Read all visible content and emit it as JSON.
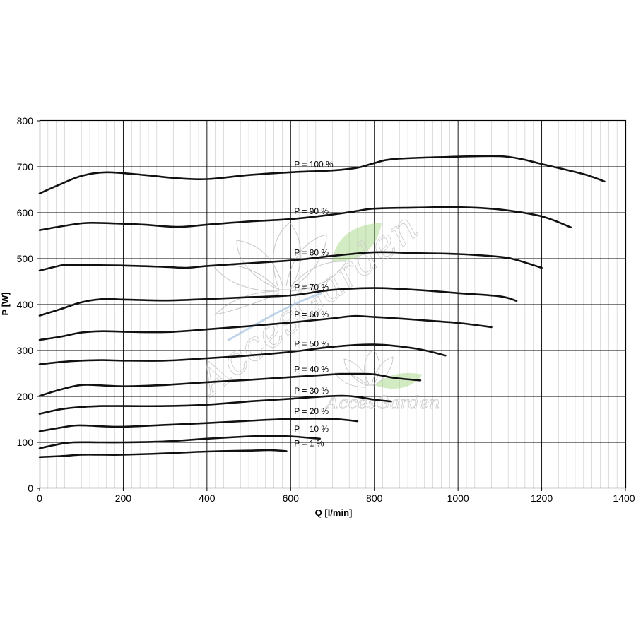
{
  "chart_data": {
    "type": "line",
    "xlabel": "Q [l/min]",
    "ylabel": "P [W]",
    "xlim": [
      0,
      1400
    ],
    "ylim": [
      0,
      800
    ],
    "x_ticks": [
      "0",
      "200",
      "400",
      "600",
      "800",
      "1000",
      "1200",
      "1400"
    ],
    "y_ticks": [
      "0",
      "100",
      "200",
      "300",
      "400",
      "500",
      "600",
      "700",
      "800"
    ],
    "grid": true,
    "line_color": "#111111",
    "series": [
      {
        "name": "P = 100 %",
        "points": [
          [
            0,
            642
          ],
          [
            50,
            662
          ],
          [
            100,
            680
          ],
          [
            160,
            688
          ],
          [
            250,
            682
          ],
          [
            330,
            675
          ],
          [
            400,
            673
          ],
          [
            500,
            682
          ],
          [
            600,
            688
          ],
          [
            700,
            692
          ],
          [
            760,
            698
          ],
          [
            800,
            708
          ],
          [
            850,
            717
          ],
          [
            1000,
            722
          ],
          [
            1100,
            723
          ],
          [
            1150,
            717
          ],
          [
            1200,
            706
          ],
          [
            1300,
            684
          ],
          [
            1350,
            668
          ]
        ]
      },
      {
        "name": "P = 90 %",
        "points": [
          [
            0,
            562
          ],
          [
            50,
            570
          ],
          [
            100,
            577
          ],
          [
            130,
            578
          ],
          [
            200,
            576
          ],
          [
            250,
            574
          ],
          [
            330,
            569
          ],
          [
            400,
            574
          ],
          [
            500,
            581
          ],
          [
            600,
            586
          ],
          [
            700,
            596
          ],
          [
            760,
            604
          ],
          [
            800,
            609
          ],
          [
            900,
            611
          ],
          [
            1000,
            612
          ],
          [
            1100,
            607
          ],
          [
            1200,
            592
          ],
          [
            1270,
            568
          ]
        ]
      },
      {
        "name": "P = 80 %",
        "points": [
          [
            0,
            474
          ],
          [
            40,
            483
          ],
          [
            60,
            486
          ],
          [
            100,
            486
          ],
          [
            200,
            485
          ],
          [
            300,
            482
          ],
          [
            350,
            480
          ],
          [
            400,
            484
          ],
          [
            500,
            490
          ],
          [
            600,
            496
          ],
          [
            700,
            506
          ],
          [
            800,
            514
          ],
          [
            900,
            512
          ],
          [
            1000,
            510
          ],
          [
            1100,
            504
          ],
          [
            1140,
            497
          ],
          [
            1200,
            480
          ]
        ]
      },
      {
        "name": "P = 70 %",
        "points": [
          [
            0,
            376
          ],
          [
            50,
            390
          ],
          [
            100,
            405
          ],
          [
            150,
            412
          ],
          [
            200,
            411
          ],
          [
            300,
            409
          ],
          [
            400,
            412
          ],
          [
            500,
            416
          ],
          [
            600,
            420
          ],
          [
            700,
            432
          ],
          [
            800,
            436
          ],
          [
            900,
            432
          ],
          [
            1000,
            425
          ],
          [
            1100,
            418
          ],
          [
            1140,
            408
          ]
        ]
      },
      {
        "name": "P = 60 %",
        "points": [
          [
            0,
            323
          ],
          [
            50,
            330
          ],
          [
            100,
            339
          ],
          [
            150,
            342
          ],
          [
            200,
            341
          ],
          [
            300,
            340
          ],
          [
            400,
            346
          ],
          [
            500,
            353
          ],
          [
            600,
            361
          ],
          [
            700,
            370
          ],
          [
            750,
            375
          ],
          [
            800,
            373
          ],
          [
            900,
            367
          ],
          [
            1000,
            360
          ],
          [
            1080,
            351
          ]
        ]
      },
      {
        "name": "P = 50 %",
        "points": [
          [
            0,
            270
          ],
          [
            50,
            275
          ],
          [
            100,
            278
          ],
          [
            150,
            279
          ],
          [
            200,
            278
          ],
          [
            300,
            278
          ],
          [
            400,
            283
          ],
          [
            500,
            289
          ],
          [
            600,
            297
          ],
          [
            700,
            308
          ],
          [
            800,
            313
          ],
          [
            900,
            304
          ],
          [
            970,
            289
          ]
        ]
      },
      {
        "name": "P = 40 %",
        "points": [
          [
            0,
            201
          ],
          [
            50,
            215
          ],
          [
            100,
            225
          ],
          [
            150,
            224
          ],
          [
            200,
            222
          ],
          [
            300,
            225
          ],
          [
            400,
            231
          ],
          [
            500,
            236
          ],
          [
            600,
            242
          ],
          [
            700,
            248
          ],
          [
            750,
            249
          ],
          [
            800,
            248
          ],
          [
            850,
            240
          ],
          [
            910,
            235
          ]
        ]
      },
      {
        "name": "P = 30 %",
        "points": [
          [
            0,
            162
          ],
          [
            50,
            172
          ],
          [
            100,
            177
          ],
          [
            150,
            179
          ],
          [
            200,
            179
          ],
          [
            300,
            179
          ],
          [
            400,
            182
          ],
          [
            500,
            189
          ],
          [
            600,
            195
          ],
          [
            700,
            201
          ],
          [
            750,
            200
          ],
          [
            800,
            193
          ],
          [
            840,
            189
          ]
        ]
      },
      {
        "name": "P = 20 %",
        "points": [
          [
            0,
            124
          ],
          [
            50,
            132
          ],
          [
            90,
            137
          ],
          [
            150,
            135
          ],
          [
            200,
            134
          ],
          [
            300,
            138
          ],
          [
            400,
            142
          ],
          [
            500,
            147
          ],
          [
            600,
            151
          ],
          [
            700,
            151
          ],
          [
            760,
            146
          ]
        ]
      },
      {
        "name": "P = 10 %",
        "points": [
          [
            0,
            87
          ],
          [
            40,
            95
          ],
          [
            80,
            100
          ],
          [
            150,
            100
          ],
          [
            200,
            100
          ],
          [
            300,
            102
          ],
          [
            400,
            108
          ],
          [
            500,
            113
          ],
          [
            550,
            114
          ],
          [
            600,
            113
          ],
          [
            670,
            108
          ]
        ]
      },
      {
        "name": "P = 1 %",
        "points": [
          [
            0,
            68
          ],
          [
            50,
            70
          ],
          [
            100,
            73
          ],
          [
            150,
            73
          ],
          [
            200,
            73
          ],
          [
            300,
            76
          ],
          [
            400,
            80
          ],
          [
            500,
            82
          ],
          [
            550,
            83
          ],
          [
            590,
            81
          ]
        ]
      }
    ],
    "label_anchor_x": 605
  },
  "watermark": {
    "text": "AccesGarden",
    "leaf_color": "#9fd47a",
    "stem_color": "#8ab0d8"
  }
}
